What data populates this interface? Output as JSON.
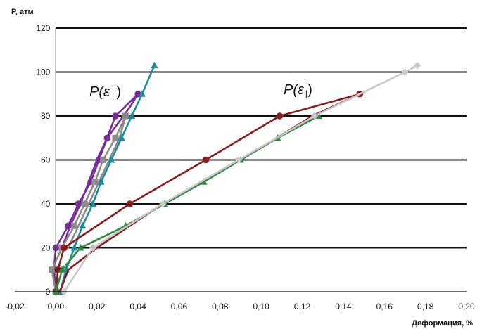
{
  "chart_data": {
    "type": "line",
    "ylabel": "P, атм",
    "xlabel": "Деформация, %",
    "xlim": [
      -0.02,
      0.2
    ],
    "ylim": [
      0,
      120
    ],
    "xticks": [
      "-0,02",
      "0,00",
      "0,02",
      "0,04",
      "0,06",
      "0,08",
      "0,10",
      "0,12",
      "0,14",
      "0,16",
      "0,18",
      "0,20"
    ],
    "yticks": [
      "0",
      "20",
      "40",
      "60",
      "80",
      "100",
      "120"
    ],
    "grid": "horizontal",
    "annotations": [
      {
        "label_main": "P(ε",
        "label_sub": "⊥",
        "label_end": ")",
        "x": 0.028,
        "y": 92
      },
      {
        "label_main": "P(ε",
        "label_sub": "∥",
        "label_end": ")",
        "x": 0.123,
        "y": 92
      }
    ],
    "series": [
      {
        "color": "#7b2c9c",
        "marker": "circle",
        "points": [
          [
            0.0,
            0
          ],
          [
            -0.001,
            10
          ],
          [
            0.0,
            20
          ],
          [
            0.006,
            30
          ],
          [
            0.011,
            40
          ],
          [
            0.017,
            50
          ],
          [
            0.021,
            60
          ],
          [
            0.025,
            70
          ],
          [
            0.029,
            80
          ],
          [
            0.04,
            90
          ],
          [
            0.036,
            84
          ],
          [
            0.025,
            70
          ],
          [
            0.02,
            60
          ],
          [
            0.016,
            50
          ],
          [
            0.012,
            40
          ],
          [
            0.007,
            30
          ],
          [
            0.003,
            20
          ]
        ],
        "marker_points": [
          [
            0.0,
            0
          ],
          [
            -0.001,
            10
          ],
          [
            0.0,
            20
          ],
          [
            0.006,
            30
          ],
          [
            0.011,
            40
          ],
          [
            0.017,
            50
          ],
          [
            0.021,
            60
          ],
          [
            0.025,
            70
          ],
          [
            0.029,
            80
          ],
          [
            0.04,
            90
          ]
        ]
      },
      {
        "color": "#8c8c8c",
        "marker": "square",
        "points": [
          [
            0.0,
            0
          ],
          [
            -0.002,
            10
          ],
          [
            0.003,
            20
          ],
          [
            0.009,
            30
          ],
          [
            0.014,
            40
          ],
          [
            0.019,
            50
          ],
          [
            0.023,
            60
          ],
          [
            0.029,
            70
          ],
          [
            0.034,
            80
          ],
          [
            0.031,
            70
          ],
          [
            0.026,
            60
          ],
          [
            0.021,
            50
          ],
          [
            0.016,
            40
          ],
          [
            0.011,
            30
          ],
          [
            0.006,
            20
          ]
        ],
        "marker_points": [
          [
            0.0,
            0
          ],
          [
            -0.002,
            10
          ],
          [
            0.003,
            20
          ],
          [
            0.009,
            30
          ],
          [
            0.014,
            40
          ],
          [
            0.019,
            50
          ],
          [
            0.023,
            60
          ],
          [
            0.029,
            70
          ],
          [
            0.034,
            80
          ]
        ]
      },
      {
        "color": "#1a8c9c",
        "marker": "triangle",
        "points": [
          [
            0.002,
            0
          ],
          [
            0.005,
            10
          ],
          [
            0.009,
            20
          ],
          [
            0.013,
            30
          ],
          [
            0.018,
            40
          ],
          [
            0.022,
            50
          ],
          [
            0.027,
            60
          ],
          [
            0.032,
            70
          ],
          [
            0.037,
            80
          ],
          [
            0.042,
            90
          ],
          [
            0.048,
            103
          ]
        ],
        "marker_points": [
          [
            0.002,
            0
          ],
          [
            0.005,
            10
          ],
          [
            0.009,
            20
          ],
          [
            0.013,
            30
          ],
          [
            0.018,
            40
          ],
          [
            0.022,
            50
          ],
          [
            0.027,
            60
          ],
          [
            0.032,
            70
          ],
          [
            0.037,
            80
          ],
          [
            0.042,
            90
          ],
          [
            0.048,
            103
          ]
        ]
      },
      {
        "color": "#8b1c1c",
        "marker": "circle",
        "points": [
          [
            0.0,
            0
          ],
          [
            0.001,
            10
          ],
          [
            0.004,
            20
          ],
          [
            0.036,
            40
          ],
          [
            0.073,
            60
          ],
          [
            0.109,
            80
          ],
          [
            0.148,
            90
          ],
          [
            0.125,
            80
          ],
          [
            0.09,
            60
          ],
          [
            0.052,
            40
          ],
          [
            0.02,
            20
          ],
          [
            0.006,
            10
          ],
          [
            0.002,
            0
          ]
        ],
        "marker_points": [
          [
            0.0,
            0
          ],
          [
            0.001,
            10
          ],
          [
            0.004,
            20
          ],
          [
            0.036,
            40
          ],
          [
            0.073,
            60
          ],
          [
            0.109,
            80
          ],
          [
            0.148,
            90
          ]
        ]
      },
      {
        "color": "#2e8b3d",
        "marker": "triangle",
        "points": [
          [
            0.0,
            0
          ],
          [
            0.003,
            10
          ],
          [
            0.012,
            20
          ],
          [
            0.034,
            30
          ],
          [
            0.053,
            40
          ],
          [
            0.072,
            50
          ],
          [
            0.09,
            60
          ],
          [
            0.108,
            70
          ],
          [
            0.128,
            80
          ]
        ],
        "marker_points": [
          [
            0.0,
            0
          ],
          [
            0.003,
            10
          ],
          [
            0.012,
            20
          ],
          [
            0.034,
            30
          ],
          [
            0.053,
            40
          ],
          [
            0.072,
            50
          ],
          [
            0.09,
            60
          ],
          [
            0.108,
            70
          ],
          [
            0.128,
            80
          ]
        ]
      },
      {
        "color": "#c8c8c8",
        "marker": "diamond",
        "points": [
          [
            0.004,
            0
          ],
          [
            0.018,
            20
          ],
          [
            0.052,
            40
          ],
          [
            0.089,
            60
          ],
          [
            0.126,
            80
          ],
          [
            0.17,
            100
          ],
          [
            0.176,
            103
          ]
        ],
        "marker_points": [
          [
            0.004,
            0
          ],
          [
            0.018,
            20
          ],
          [
            0.052,
            40
          ],
          [
            0.089,
            60
          ],
          [
            0.126,
            80
          ],
          [
            0.17,
            100
          ],
          [
            0.176,
            103
          ]
        ]
      }
    ]
  }
}
